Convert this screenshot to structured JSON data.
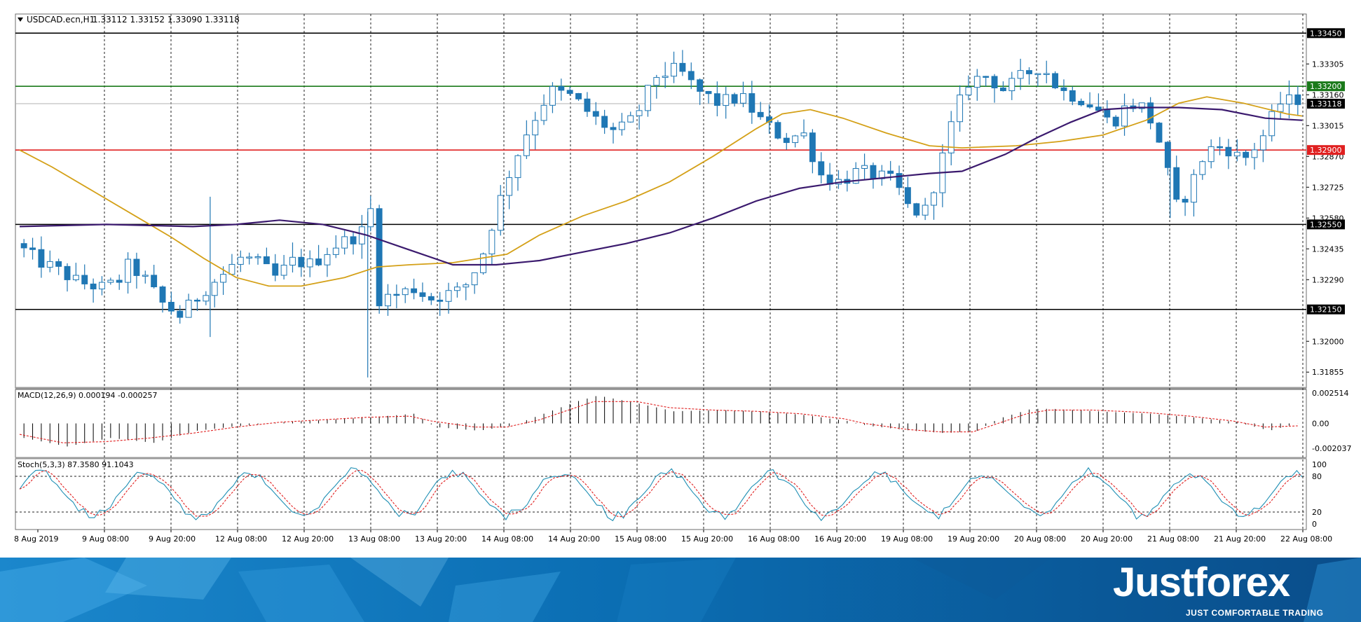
{
  "chart_data": {
    "type": "candlestick",
    "symbol_header": "USDCAD.ecn,H1",
    "ohlc_header": "1.33112 1.33152 1.33090 1.33118",
    "current_price": 1.33118,
    "price_axis": {
      "ylim": [
        1.3178,
        1.3354
      ],
      "ticks": [
        "1.33305",
        "1.33160",
        "1.33015",
        "1.32870",
        "1.32725",
        "1.32580",
        "1.32435",
        "1.32290",
        "1.32000",
        "1.31855"
      ]
    },
    "x_ticks": [
      "8 Aug 2019",
      "9 Aug 08:00",
      "9 Aug 20:00",
      "12 Aug 08:00",
      "12 Aug 20:00",
      "13 Aug 08:00",
      "13 Aug 20:00",
      "14 Aug 08:00",
      "14 Aug 20:00",
      "15 Aug 08:00",
      "15 Aug 20:00",
      "16 Aug 08:00",
      "16 Aug 20:00",
      "19 Aug 08:00",
      "19 Aug 20:00",
      "20 Aug 08:00",
      "20 Aug 20:00",
      "21 Aug 08:00",
      "21 Aug 20:00",
      "22 Aug 08:00"
    ],
    "levels": [
      {
        "label": "1.33450",
        "value": 1.3345,
        "color": "#000000"
      },
      {
        "label": "1.33200",
        "value": 1.332,
        "color": "#1a7a1a"
      },
      {
        "label": "1.32900",
        "value": 1.329,
        "color": "#e02020"
      },
      {
        "label": "1.32550",
        "value": 1.3255,
        "color": "#000000"
      },
      {
        "label": "1.32150",
        "value": 1.3215,
        "color": "#000000"
      }
    ],
    "bull_color": "#ffffff",
    "bear_color": "#1f77b4",
    "candle_stroke": "#1f77b4",
    "ma_fast_color": "#d4a017",
    "ma_slow_color": "#3b1a6e",
    "ma_fast_points": [
      [
        0,
        1.329
      ],
      [
        15,
        1.3282
      ],
      [
        35,
        1.327
      ],
      [
        55,
        1.3258
      ],
      [
        70,
        1.3249
      ],
      [
        85,
        1.3239
      ],
      [
        100,
        1.323
      ],
      [
        115,
        1.3226
      ],
      [
        130,
        1.3226
      ],
      [
        150,
        1.323
      ],
      [
        165,
        1.3235
      ],
      [
        180,
        1.3236
      ],
      [
        200,
        1.3237
      ],
      [
        225,
        1.3241
      ],
      [
        240,
        1.325
      ],
      [
        260,
        1.3259
      ],
      [
        280,
        1.3266
      ],
      [
        300,
        1.3275
      ],
      [
        320,
        1.3287
      ],
      [
        340,
        1.33
      ],
      [
        352,
        1.3307
      ],
      [
        365,
        1.3309
      ],
      [
        380,
        1.3305
      ],
      [
        400,
        1.3298
      ],
      [
        420,
        1.3292
      ],
      [
        435,
        1.3291
      ],
      [
        460,
        1.3292
      ],
      [
        480,
        1.3294
      ],
      [
        500,
        1.3297
      ],
      [
        520,
        1.3304
      ],
      [
        535,
        1.3312
      ],
      [
        548,
        1.3315
      ],
      [
        565,
        1.3312
      ],
      [
        585,
        1.3307
      ],
      [
        592,
        1.3306
      ]
    ],
    "ma_slow_points": [
      [
        0,
        1.3254
      ],
      [
        40,
        1.3255
      ],
      [
        80,
        1.3254
      ],
      [
        100,
        1.3255
      ],
      [
        120,
        1.3257
      ],
      [
        140,
        1.3255
      ],
      [
        160,
        1.325
      ],
      [
        180,
        1.3243
      ],
      [
        200,
        1.3236
      ],
      [
        220,
        1.3236
      ],
      [
        240,
        1.3238
      ],
      [
        260,
        1.3242
      ],
      [
        280,
        1.3246
      ],
      [
        300,
        1.3251
      ],
      [
        320,
        1.3258
      ],
      [
        340,
        1.3266
      ],
      [
        360,
        1.3272
      ],
      [
        380,
        1.3275
      ],
      [
        400,
        1.3277
      ],
      [
        420,
        1.3279
      ],
      [
        435,
        1.328
      ],
      [
        455,
        1.3288
      ],
      [
        470,
        1.3296
      ],
      [
        485,
        1.3303
      ],
      [
        500,
        1.3309
      ],
      [
        515,
        1.331
      ],
      [
        535,
        1.331
      ],
      [
        555,
        1.3309
      ],
      [
        575,
        1.3305
      ],
      [
        592,
        1.3304
      ]
    ],
    "indicators": {
      "macd": {
        "label": "MACD(12,26,9) 0.000194 -0.000257",
        "ylim": [
          -0.0028,
          0.0028
        ],
        "ticks": [
          "0.002514",
          "0.00",
          "-0.002037"
        ],
        "hist_points": [
          [
            0,
            -0.0012
          ],
          [
            20,
            -0.0019
          ],
          [
            40,
            -0.0012
          ],
          [
            60,
            -0.0016
          ],
          [
            80,
            -0.0006
          ],
          [
            100,
            -0.0002
          ],
          [
            120,
            0.0001
          ],
          [
            140,
            0.0003
          ],
          [
            160,
            0.0005
          ],
          [
            180,
            0.0008
          ],
          [
            190,
            -0.0003
          ],
          [
            210,
            -0.0006
          ],
          [
            225,
            -0.0002
          ],
          [
            240,
            0.0008
          ],
          [
            255,
            0.0018
          ],
          [
            265,
            0.0023
          ],
          [
            285,
            0.0016
          ],
          [
            300,
            0.001
          ],
          [
            320,
            0.0011
          ],
          [
            340,
            0.001
          ],
          [
            360,
            0.0007
          ],
          [
            380,
            0.0002
          ],
          [
            390,
            -0.0002
          ],
          [
            410,
            -0.0006
          ],
          [
            425,
            -0.0008
          ],
          [
            440,
            -0.0006
          ],
          [
            450,
            0.0004
          ],
          [
            465,
            0.0012
          ],
          [
            475,
            0.0012
          ],
          [
            495,
            0.001
          ],
          [
            520,
            0.0008
          ],
          [
            540,
            0.0005
          ],
          [
            560,
            0.0001
          ],
          [
            575,
            -0.0006
          ],
          [
            590,
            0.0001
          ]
        ],
        "signal_points": [
          [
            0,
            -0.0009
          ],
          [
            20,
            -0.0016
          ],
          [
            40,
            -0.0015
          ],
          [
            60,
            -0.0012
          ],
          [
            80,
            -0.0008
          ],
          [
            100,
            -0.0003
          ],
          [
            120,
            0.0001
          ],
          [
            140,
            0.0003
          ],
          [
            160,
            0.0005
          ],
          [
            180,
            0.0006
          ],
          [
            190,
            0.0002
          ],
          [
            210,
            -0.0003
          ],
          [
            225,
            -0.0003
          ],
          [
            240,
            0.0003
          ],
          [
            255,
            0.0012
          ],
          [
            265,
            0.0018
          ],
          [
            285,
            0.0018
          ],
          [
            300,
            0.0013
          ],
          [
            320,
            0.0011
          ],
          [
            340,
            0.001
          ],
          [
            360,
            0.0008
          ],
          [
            380,
            0.0004
          ],
          [
            390,
            0.0
          ],
          [
            410,
            -0.0005
          ],
          [
            425,
            -0.0007
          ],
          [
            440,
            -0.0007
          ],
          [
            450,
            -0.0001
          ],
          [
            465,
            0.0008
          ],
          [
            475,
            0.0011
          ],
          [
            495,
            0.0011
          ],
          [
            520,
            0.0009
          ],
          [
            540,
            0.0006
          ],
          [
            560,
            0.0002
          ],
          [
            575,
            -0.0003
          ],
          [
            590,
            -0.0002
          ]
        ]
      },
      "stochastic": {
        "label": "Stoch(5,3,3) 87.3580 91.1043",
        "ylim": [
          0,
          100
        ],
        "ticks": [
          "100",
          "80",
          "20",
          "0"
        ],
        "levels": [
          80,
          20
        ]
      }
    }
  },
  "brand": {
    "name": "Justforex",
    "tagline": "JUST COMFORTABLE TRADING",
    "primary_color": "#0b6eb3",
    "dark_color": "#0a3d6e"
  }
}
